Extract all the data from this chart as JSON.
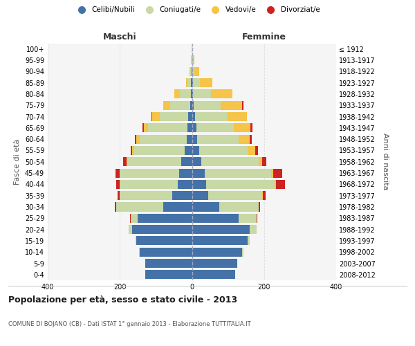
{
  "age_groups": [
    "0-4",
    "5-9",
    "10-14",
    "15-19",
    "20-24",
    "25-29",
    "30-34",
    "35-39",
    "40-44",
    "45-49",
    "50-54",
    "55-59",
    "60-64",
    "65-69",
    "70-74",
    "75-79",
    "80-84",
    "85-89",
    "90-94",
    "95-99",
    "100+"
  ],
  "birth_years": [
    "2008-2012",
    "2003-2007",
    "1998-2002",
    "1993-1997",
    "1988-1992",
    "1983-1987",
    "1978-1982",
    "1973-1977",
    "1968-1972",
    "1963-1967",
    "1958-1962",
    "1953-1957",
    "1948-1952",
    "1943-1947",
    "1938-1942",
    "1933-1937",
    "1928-1932",
    "1923-1927",
    "1918-1922",
    "1913-1917",
    "≤ 1912"
  ],
  "males": {
    "celibi": [
      130,
      130,
      145,
      155,
      165,
      150,
      80,
      55,
      40,
      35,
      30,
      20,
      15,
      12,
      10,
      5,
      3,
      2,
      1,
      0,
      0
    ],
    "coniugati": [
      0,
      0,
      1,
      2,
      10,
      20,
      130,
      145,
      160,
      165,
      150,
      140,
      130,
      110,
      80,
      55,
      30,
      10,
      4,
      2,
      1
    ],
    "vedovi": [
      0,
      0,
      0,
      0,
      0,
      0,
      0,
      0,
      0,
      0,
      2,
      5,
      10,
      12,
      20,
      20,
      15,
      5,
      2,
      0,
      0
    ],
    "divorziati": [
      0,
      0,
      0,
      0,
      0,
      1,
      3,
      7,
      10,
      12,
      8,
      5,
      3,
      3,
      2,
      0,
      0,
      0,
      0,
      0,
      0
    ]
  },
  "females": {
    "nubili": [
      120,
      125,
      140,
      155,
      160,
      130,
      75,
      45,
      40,
      35,
      25,
      20,
      15,
      12,
      8,
      5,
      3,
      2,
      1,
      0,
      0
    ],
    "coniugate": [
      0,
      1,
      2,
      5,
      20,
      50,
      110,
      150,
      190,
      185,
      160,
      135,
      115,
      105,
      90,
      75,
      50,
      20,
      5,
      2,
      0
    ],
    "vedove": [
      0,
      0,
      0,
      0,
      0,
      0,
      1,
      2,
      3,
      5,
      10,
      20,
      30,
      45,
      55,
      60,
      60,
      35,
      15,
      5,
      1
    ],
    "divorziate": [
      0,
      0,
      0,
      0,
      0,
      1,
      3,
      8,
      25,
      25,
      12,
      8,
      5,
      5,
      0,
      3,
      0,
      0,
      0,
      0,
      0
    ]
  },
  "colors": {
    "celibi_nubili": "#4472a8",
    "coniugati": "#c8d9a5",
    "vedovi": "#f5c448",
    "divorziati": "#cc2222"
  },
  "legend_labels": [
    "Celibi/Nubili",
    "Coniugati/e",
    "Vedovi/e",
    "Divorziat/e"
  ],
  "title": "Popolazione per età, sesso e stato civile - 2013",
  "subtitle": "COMUNE DI BOJANO (CB) - Dati ISTAT 1° gennaio 2013 - Elaborazione TUTTITALIA.IT",
  "label_maschi": "Maschi",
  "label_femmine": "Femmine",
  "ylabel_left": "Fasce di età",
  "ylabel_right": "Anni di nascita",
  "xlim": 400,
  "background_color": "#ffffff",
  "plot_bg_color": "#f5f5f5",
  "grid_color": "#dddddd"
}
